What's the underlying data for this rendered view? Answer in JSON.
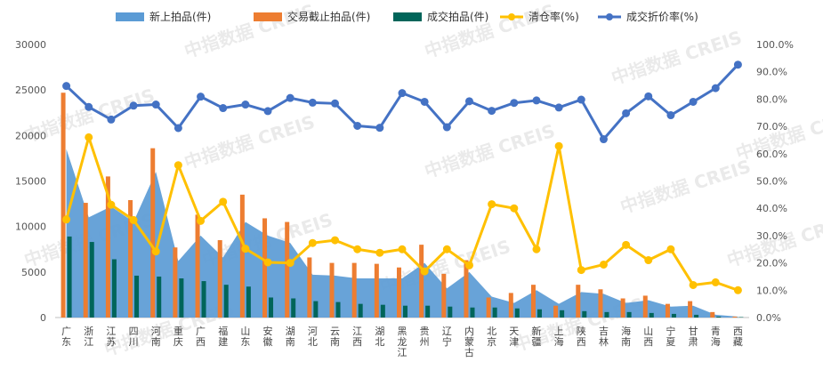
{
  "chart_data": {
    "type": "bar",
    "categories": [
      "广东",
      "浙江",
      "江苏",
      "四川",
      "河南",
      "重庆",
      "广西",
      "福建",
      "山东",
      "安徽",
      "湖南",
      "河北",
      "云南",
      "江西",
      "湖北",
      "黑龙江",
      "贵州",
      "辽宁",
      "内蒙古",
      "北京",
      "天津",
      "新疆",
      "上海",
      "陕西",
      "吉林",
      "海南",
      "山西",
      "宁夏",
      "甘肃",
      "青海",
      "西藏"
    ],
    "series": [
      {
        "name": "新上拍品(件)",
        "kind": "area",
        "axis": "left",
        "color": "#5b9bd5",
        "values": [
          18500,
          11000,
          12200,
          10500,
          16000,
          6200,
          9000,
          6600,
          10500,
          9000,
          8200,
          4700,
          4600,
          4300,
          4300,
          4300,
          6000,
          3200,
          5000,
          2300,
          1600,
          3000,
          1500,
          2800,
          2600,
          1600,
          1900,
          1200,
          1300,
          300,
          100
        ]
      },
      {
        "name": "交易截止拍品(件)",
        "kind": "bar",
        "axis": "left",
        "color": "#ed7d31",
        "values": [
          24700,
          12600,
          15500,
          12900,
          18600,
          7700,
          11300,
          8500,
          13500,
          10900,
          10500,
          6600,
          6000,
          6000,
          5900,
          5500,
          8000,
          4800,
          6300,
          2200,
          2700,
          3600,
          1300,
          3600,
          3100,
          2100,
          2400,
          1500,
          1800,
          600,
          100
        ]
      },
      {
        "name": "成交拍品(件)",
        "kind": "bar",
        "axis": "left",
        "color": "#00655a",
        "values": [
          8900,
          8300,
          6400,
          4600,
          4500,
          4300,
          4000,
          3600,
          3400,
          2200,
          2100,
          1800,
          1700,
          1500,
          1400,
          1300,
          1300,
          1200,
          1100,
          1100,
          1000,
          900,
          800,
          700,
          600,
          600,
          500,
          400,
          300,
          100,
          50
        ]
      },
      {
        "name": "清仓率(%)",
        "kind": "line",
        "axis": "right",
        "color": "#ffc000",
        "values": [
          35.9,
          66.0,
          41.3,
          35.7,
          24.2,
          55.8,
          35.4,
          42.4,
          25.2,
          20.2,
          20.0,
          27.3,
          28.3,
          25.0,
          23.7,
          25.0,
          16.9,
          25.0,
          19.1,
          41.5,
          40.0,
          25.0,
          62.8,
          17.4,
          19.4,
          26.6,
          21.0,
          25.0,
          11.9,
          12.9,
          10.0
        ]
      },
      {
        "name": "成交折价率(%)",
        "kind": "line",
        "axis": "right",
        "color": "#4472c4",
        "values": [
          84.8,
          77.1,
          72.5,
          77.6,
          78.0,
          69.4,
          80.9,
          76.7,
          78.0,
          75.6,
          80.4,
          78.7,
          78.4,
          70.2,
          69.5,
          82.2,
          79.0,
          69.7,
          79.2,
          75.7,
          78.6,
          79.5,
          76.9,
          79.8,
          65.3,
          74.8,
          81.0,
          74.1,
          79.0,
          84.0,
          92.6
        ]
      }
    ],
    "y_left": {
      "min": 0,
      "max": 30000,
      "step": 5000
    },
    "y_right": {
      "min": 0,
      "max": 100,
      "step": 10
    },
    "grid": false,
    "legend": "top"
  },
  "yl_ticks": [
    "0",
    "5000",
    "10000",
    "15000",
    "20000",
    "25000",
    "30000"
  ],
  "yr_ticks": [
    "0.0%",
    "10.0%",
    "20.0%",
    "30.0%",
    "40.0%",
    "50.0%",
    "60.0%",
    "70.0%",
    "80.0%",
    "90.0%",
    "100.0%"
  ],
  "watermark": "中指数据 CREIS"
}
